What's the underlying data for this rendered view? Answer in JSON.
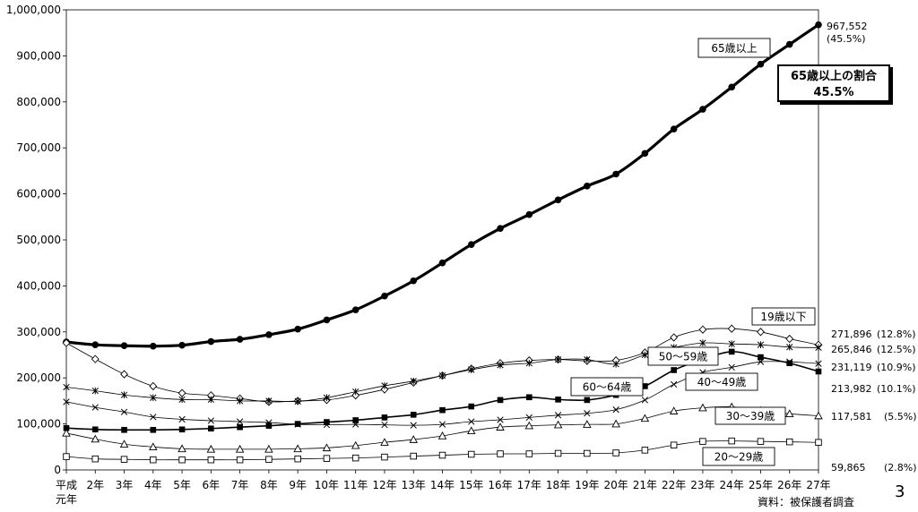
{
  "chart_data": {
    "type": "line",
    "categories": [
      "平成\n元年",
      "2年",
      "3年",
      "4年",
      "5年",
      "6年",
      "7年",
      "8年",
      "9年",
      "10年",
      "11年",
      "12年",
      "13年",
      "14年",
      "15年",
      "16年",
      "17年",
      "18年",
      "19年",
      "20年",
      "21年",
      "22年",
      "23年",
      "24年",
      "25年",
      "26年",
      "27年"
    ],
    "y_ticks": [
      "0",
      "100,000",
      "200,000",
      "300,000",
      "400,000",
      "500,000",
      "600,000",
      "700,000",
      "800,000",
      "900,000",
      "1,000,000"
    ],
    "ylim": [
      0,
      1000000
    ],
    "series": [
      {
        "name": "65歳以上",
        "marker": "filled-circle",
        "width": 3.2,
        "values": [
          278000,
          272000,
          270000,
          269000,
          271000,
          279000,
          284000,
          294000,
          306000,
          326000,
          348000,
          378000,
          411000,
          450000,
          490000,
          525000,
          555000,
          587000,
          617000,
          643000,
          688000,
          741000,
          784000,
          832000,
          882000,
          925000,
          967552
        ]
      },
      {
        "name": "19歳以下",
        "marker": "open-diamond",
        "width": 0.8,
        "values": [
          276000,
          241000,
          208000,
          182000,
          167000,
          162000,
          155000,
          148000,
          150000,
          152000,
          162000,
          175000,
          190000,
          205000,
          220000,
          232000,
          238000,
          240000,
          237000,
          238000,
          255000,
          288000,
          305000,
          307000,
          300000,
          285000,
          271896
        ]
      },
      {
        "name": "50〜59歳",
        "marker": "asterisk",
        "width": 0.8,
        "values": [
          180000,
          172000,
          163000,
          157000,
          153000,
          153000,
          150000,
          150000,
          149000,
          157000,
          170000,
          183000,
          193000,
          205000,
          218000,
          228000,
          232000,
          240000,
          240000,
          230000,
          250000,
          266000,
          276000,
          274000,
          272000,
          267000,
          265846
        ]
      },
      {
        "name": "40〜49歳",
        "marker": "x",
        "width": 0.8,
        "values": [
          148000,
          136000,
          126000,
          115000,
          110000,
          107000,
          105000,
          103000,
          99000,
          98000,
          99000,
          98000,
          97000,
          99000,
          105000,
          109000,
          114000,
          119000,
          123000,
          131000,
          152000,
          186000,
          212000,
          223000,
          235000,
          235000,
          231119
        ]
      },
      {
        "name": "60〜64歳",
        "marker": "filled-square",
        "width": 1.6,
        "values": [
          91000,
          88000,
          87000,
          87000,
          88000,
          90000,
          93000,
          96000,
          100000,
          104000,
          108000,
          114000,
          120000,
          130000,
          138000,
          152000,
          158000,
          153000,
          152000,
          163000,
          182000,
          217000,
          240000,
          257000,
          245000,
          232000,
          213982
        ]
      },
      {
        "name": "30〜39歳",
        "marker": "open-triangle",
        "width": 0.8,
        "values": [
          80000,
          67000,
          56000,
          50000,
          46000,
          45000,
          45000,
          45000,
          46000,
          48000,
          53000,
          60000,
          66000,
          74000,
          85000,
          93000,
          96000,
          98000,
          99000,
          100000,
          112000,
          128000,
          135000,
          137000,
          129000,
          122000,
          117581
        ]
      },
      {
        "name": "20〜29歳",
        "marker": "open-square",
        "width": 0.8,
        "values": [
          29000,
          24000,
          23000,
          22000,
          22000,
          22000,
          22000,
          23000,
          24000,
          25000,
          26000,
          28000,
          30000,
          32000,
          34000,
          35000,
          35000,
          36000,
          36000,
          37000,
          43000,
          54000,
          62000,
          63000,
          62000,
          61000,
          59865
        ]
      }
    ],
    "end_labels": [
      {
        "value": "967,552",
        "pct": "(45.5%)"
      },
      {
        "value": "271,896",
        "pct": "(12.8%)"
      },
      {
        "value": "265,846",
        "pct": "(12.5%)"
      },
      {
        "value": "231,119",
        "pct": "(10.9%)"
      },
      {
        "value": "213,982",
        "pct": "(10.1%)"
      },
      {
        "value": "117,581",
        "pct": "(5.5%)"
      },
      {
        "value": "59,865",
        "pct": "(2.8%)"
      }
    ],
    "highlight": {
      "line1": "65歳以上の割合",
      "line2": "45.5%"
    },
    "source": "資料：被保護者調査",
    "page_number": "3",
    "grid": false
  }
}
